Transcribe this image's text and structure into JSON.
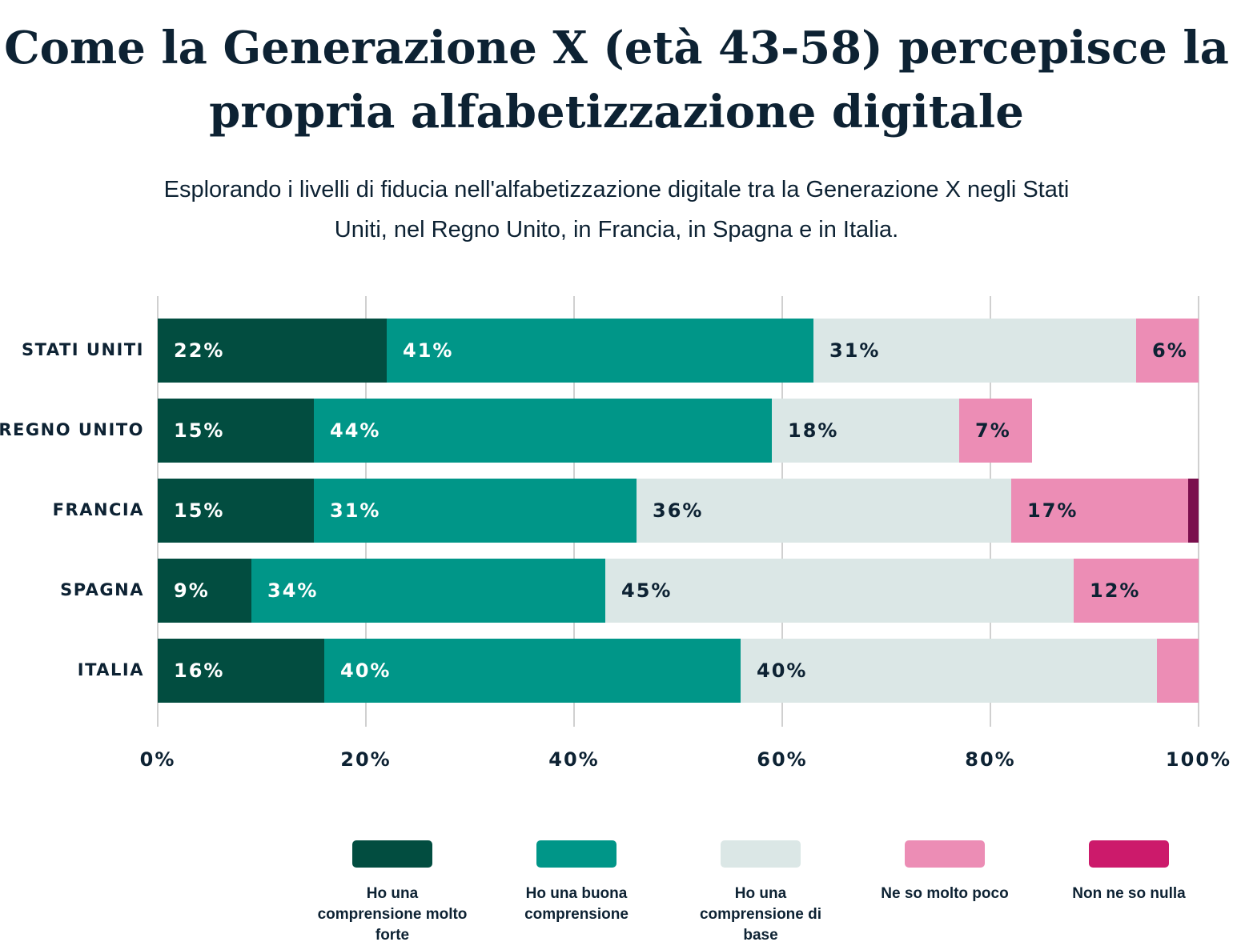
{
  "chart_data": {
    "type": "stacked-barh",
    "title": "Come la Generazione X (età 43-58) percepisce la propria alfabetizzazione digitale",
    "subtitle": "Esplorando i livelli di fiducia nell'alfabetizzazione digitale tra la Generazione X negli Stati Uniti, nel Regno Unito, in Francia, in Spagna e in Italia.",
    "categories": [
      "STATI UNITI",
      "REGNO UNITO",
      "FRANCIA",
      "SPAGNA",
      "ITALIA"
    ],
    "series": [
      {
        "name": "Ho una comprensione molto forte",
        "color": "#024d40",
        "values": [
          22,
          15,
          15,
          9,
          16
        ],
        "value_labels": [
          "22%",
          "15%",
          "15%",
          "9%",
          "16%"
        ]
      },
      {
        "name": "Ho una buona comprensione",
        "color": "#009688",
        "values": [
          41,
          44,
          31,
          34,
          40
        ],
        "value_labels": [
          "41%",
          "44%",
          "31%",
          "34%",
          "40%"
        ]
      },
      {
        "name": "Ho una comprensione di base",
        "color": "#dbe7e6",
        "values": [
          31,
          18,
          36,
          45,
          40
        ],
        "value_labels": [
          "31%",
          "18%",
          "36%",
          "45%",
          "40%"
        ]
      },
      {
        "name": "Ne so molto poco",
        "color": "#ec8db5",
        "values": [
          6,
          7,
          17,
          12,
          4
        ],
        "value_labels": [
          "6%",
          "7%",
          "17%",
          "12%",
          null
        ]
      },
      {
        "name": "Non ne so nulla",
        "color": "#cc1a6b",
        "values": [
          0,
          0,
          1,
          0,
          0
        ],
        "value_labels": [
          null,
          null,
          null,
          null,
          null
        ]
      }
    ],
    "xlim": [
      0,
      100
    ],
    "xticks": [
      {
        "value": 0,
        "label": "0%"
      },
      {
        "value": 20,
        "label": "20%"
      },
      {
        "value": 40,
        "label": "40%"
      },
      {
        "value": 60,
        "label": "60%"
      },
      {
        "value": 80,
        "label": "80%"
      },
      {
        "value": 100,
        "label": "100%"
      }
    ],
    "grid": true
  }
}
